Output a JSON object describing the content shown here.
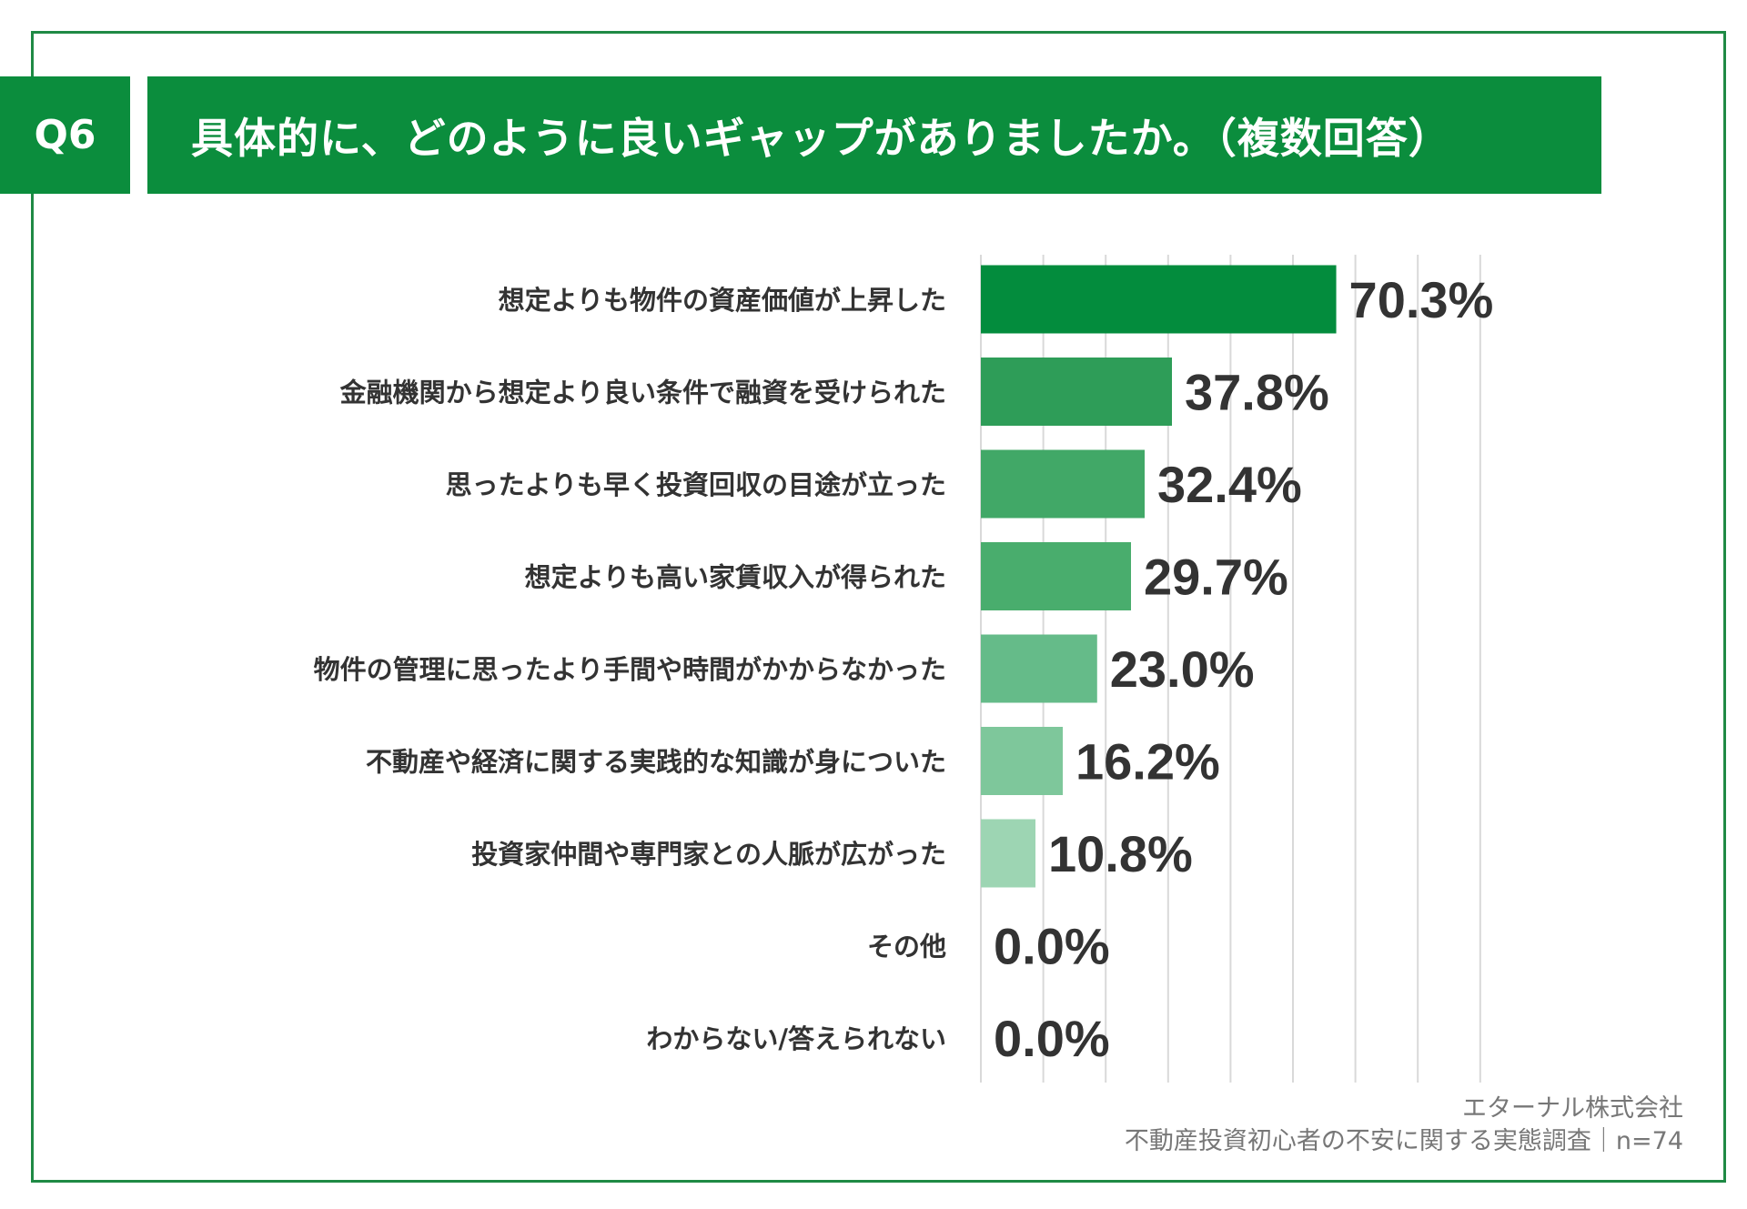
{
  "question": {
    "label": "Q6",
    "title": "具体的に、どのように良いギャップがありましたか。（複数回答）"
  },
  "chart_data": {
    "type": "bar",
    "orientation": "horizontal",
    "title": "具体的に、どのように良いギャップがありましたか。（複数回答）",
    "categories": [
      "想定よりも物件の資産価値が上昇した",
      "金融機関から想定より良い条件で融資を受けられた",
      "思ったよりも早く投資回収の目途が立った",
      "想定よりも高い家賃収入が得られた",
      "物件の管理に思ったより手間や時間がかからなかった",
      "不動産や経済に関する実践的な知識が身についた",
      "投資家仲間や専門家との人脈が広がった",
      "その他",
      "わからない/答えられない"
    ],
    "values": [
      70.3,
      37.8,
      32.4,
      29.7,
      23.0,
      16.2,
      10.8,
      0.0,
      0.0
    ],
    "value_labels": [
      "70.3%",
      "37.8%",
      "32.4%",
      "29.7%",
      "23.0%",
      "16.2%",
      "10.8%",
      "0.0%",
      "0.0%"
    ],
    "unit": "%",
    "xlim": [
      0,
      80
    ],
    "grid": true,
    "bar_colors": [
      "#038c3d",
      "#2e9d58",
      "#41a867",
      "#49ad6d",
      "#65bb89",
      "#7ec79b",
      "#9dd5b3",
      "#9dd5b3",
      "#9dd5b3"
    ]
  },
  "footer": {
    "company": "エターナル株式会社",
    "survey": "不動産投資初心者の不安に関する実態調査｜n=74"
  }
}
